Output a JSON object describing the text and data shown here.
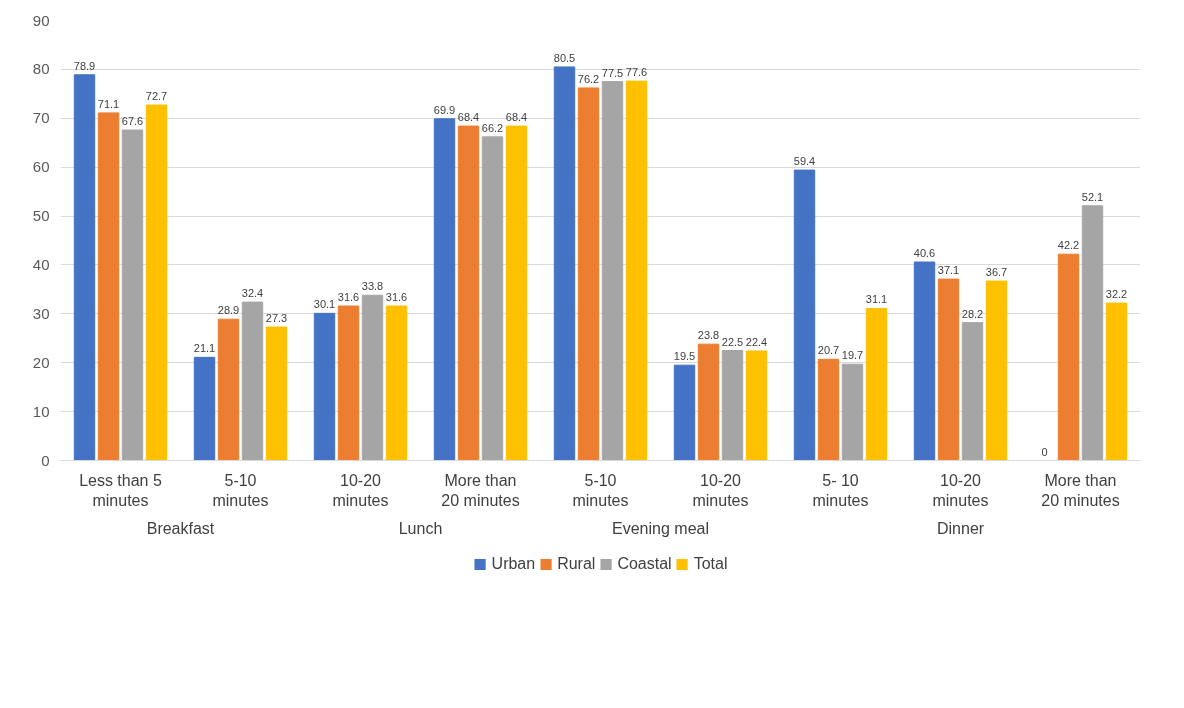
{
  "chart_data": {
    "type": "bar",
    "categories": [
      "Less than 5 minutes",
      "5-10 minutes",
      "10-20 minutes",
      "More than 20 minutes",
      "5-10 minutes",
      "10-20 minutes",
      "5- 10 minutes",
      "10-20 minutes",
      "More than 20 minutes"
    ],
    "series": [
      {
        "name": "Urban",
        "color": "#4472c4",
        "values": [
          78.9,
          21.1,
          30.1,
          69.9,
          80.5,
          19.5,
          59.4,
          40.6,
          0
        ]
      },
      {
        "name": "Rural",
        "color": "#ed7d31",
        "values": [
          71.1,
          28.9,
          31.6,
          68.4,
          76.2,
          23.8,
          20.7,
          37.1,
          42.2
        ]
      },
      {
        "name": "Coastal",
        "color": "#a5a5a5",
        "values": [
          67.6,
          32.4,
          33.8,
          66.2,
          77.5,
          22.5,
          19.7,
          28.2,
          52.1
        ]
      },
      {
        "name": "Total",
        "color": "#ffc000",
        "values": [
          72.7,
          27.3,
          31.6,
          68.4,
          77.6,
          22.4,
          31.1,
          36.7,
          32.2
        ]
      }
    ],
    "annotations": [
      "Breakfast",
      "Lunch",
      "Evening meal",
      "Dinner"
    ],
    "ylim": [
      0,
      90
    ],
    "yticks": [
      0,
      10,
      20,
      30,
      40,
      50,
      60,
      70,
      80,
      90
    ],
    "grid": "y",
    "legend": "bottom",
    "data_labels": true
  }
}
